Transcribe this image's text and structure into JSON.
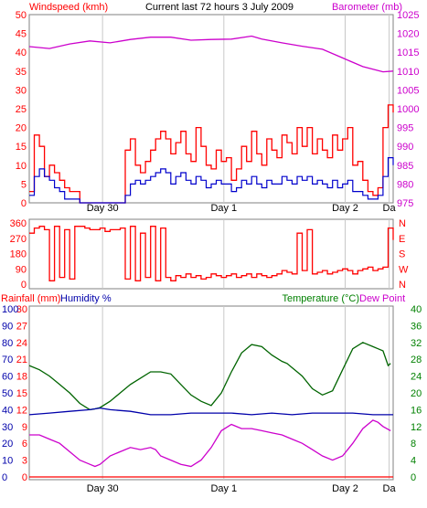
{
  "header": {
    "left_label": "Windspeed (kmh)",
    "center_title": "Current last 72 hours 3 July 2009",
    "right_label": "Barometer (mb)"
  },
  "colors": {
    "background": "#ffffff",
    "plot_border": "#808080",
    "grid_vertical": "#c8c8c8",
    "wind": "#ff0000",
    "gust": "#ff0000",
    "wind_avg": "#0000cc",
    "green": "#008000",
    "barometer": "#cc00cc",
    "direction": "#ff0000",
    "humidity": "#0000aa",
    "temperature": "#006400",
    "dewpoint": "#cc00cc",
    "rainfall": "#ff0000",
    "tick_red": "#ff0000",
    "tick_magenta": "#cc00cc",
    "tick_blue": "#0000aa",
    "tick_green": "#008000"
  },
  "chart_data": [
    {
      "type": "line",
      "name": "wind-and-barometer",
      "x_range": [
        0,
        72
      ],
      "x_ticks": [
        {
          "x": 14.5,
          "label": "Day 30"
        },
        {
          "x": 38.5,
          "label": "Day 1"
        },
        {
          "x": 62.5,
          "label": "Day 2"
        },
        {
          "x": 71.2,
          "label": "Da"
        }
      ],
      "left_axis": {
        "label": "Windspeed (kmh)",
        "ylim": [
          0,
          50
        ],
        "ticks": [
          0,
          5,
          10,
          15,
          20,
          25,
          30,
          35,
          40,
          45,
          50
        ]
      },
      "right_axis": {
        "label": "Barometer (mb)",
        "ylim": [
          975,
          1025
        ],
        "ticks": [
          975,
          980,
          985,
          990,
          995,
          1000,
          1005,
          1010,
          1015,
          1020,
          1025
        ]
      },
      "series": [
        {
          "key": "barometer",
          "axis": "right",
          "x": [
            0,
            4,
            8,
            12,
            16,
            20,
            24,
            28,
            32,
            36,
            40,
            44,
            46,
            50,
            54,
            58,
            62,
            66,
            70,
            72
          ],
          "y": [
            1016.5,
            1016,
            1017.2,
            1018,
            1017.5,
            1018.4,
            1019,
            1019,
            1018.2,
            1018.4,
            1018.5,
            1019.3,
            1018.5,
            1017.5,
            1016.6,
            1015.8,
            1013.5,
            1011.2,
            1009.8,
            1010
          ]
        },
        {
          "key": "gust",
          "axis": "left",
          "x": [
            0,
            1,
            2,
            3,
            4,
            5,
            6,
            7,
            8,
            9,
            10,
            11,
            12,
            13,
            14,
            15,
            16,
            17,
            18,
            19,
            20,
            21,
            22,
            23,
            24,
            25,
            26,
            27,
            28,
            29,
            30,
            31,
            32,
            33,
            34,
            35,
            36,
            37,
            38,
            39,
            40,
            41,
            42,
            43,
            44,
            45,
            46,
            47,
            48,
            49,
            50,
            51,
            52,
            53,
            54,
            55,
            56,
            57,
            58,
            59,
            60,
            61,
            62,
            63,
            64,
            65,
            66,
            67,
            68,
            69,
            70,
            71,
            72
          ],
          "y": [
            3,
            18,
            15,
            7,
            10,
            8,
            6,
            4,
            3,
            3,
            0,
            0,
            0,
            0,
            0,
            0,
            0,
            0,
            0,
            14,
            17,
            10,
            8,
            11,
            14,
            17,
            19,
            17,
            13,
            16,
            19,
            13,
            11,
            20,
            15,
            10,
            9,
            14,
            11,
            12,
            6,
            9,
            15,
            11,
            19,
            13,
            10,
            17,
            14,
            12,
            18,
            16,
            13,
            20,
            15,
            20,
            13,
            17,
            14,
            12,
            18,
            14,
            17,
            20,
            10,
            11,
            6,
            3,
            2,
            4,
            20,
            26,
            24
          ]
        },
        {
          "key": "wind_avg",
          "axis": "left",
          "x": [
            0,
            1,
            2,
            3,
            4,
            5,
            6,
            7,
            8,
            9,
            10,
            11,
            12,
            13,
            14,
            15,
            16,
            17,
            18,
            19,
            20,
            21,
            22,
            23,
            24,
            25,
            26,
            27,
            28,
            29,
            30,
            31,
            32,
            33,
            34,
            35,
            36,
            37,
            38,
            39,
            40,
            41,
            42,
            43,
            44,
            45,
            46,
            47,
            48,
            49,
            50,
            51,
            52,
            53,
            54,
            55,
            56,
            57,
            58,
            59,
            60,
            61,
            62,
            63,
            64,
            65,
            66,
            67,
            68,
            69,
            70,
            71,
            72
          ],
          "y": [
            2,
            7,
            9,
            7,
            6,
            4,
            3,
            1,
            1,
            1,
            0,
            0,
            0,
            0,
            0,
            0,
            0,
            0,
            0,
            2,
            5,
            6,
            5,
            6,
            7,
            8,
            9,
            8,
            5,
            7,
            8,
            6,
            5,
            7,
            6,
            4,
            5,
            6,
            5,
            5,
            3,
            4,
            6,
            5,
            7,
            5,
            4,
            6,
            5,
            5,
            7,
            6,
            5,
            7,
            6,
            7,
            5,
            6,
            5,
            4,
            6,
            4,
            5,
            6,
            3,
            3,
            2,
            1,
            1,
            2,
            7,
            12,
            10
          ]
        }
      ]
    },
    {
      "type": "line",
      "name": "wind-direction",
      "x_range": [
        0,
        72
      ],
      "left_axis": {
        "ylim": [
          0,
          360
        ],
        "ticks": [
          0,
          90,
          180,
          270,
          360
        ]
      },
      "right_axis": {
        "ticks": [
          "N",
          "W",
          "S",
          "E",
          "N"
        ]
      },
      "series": [
        {
          "key": "direction",
          "axis": "left",
          "x": [
            0,
            1,
            2,
            3,
            4,
            5,
            6,
            7,
            8,
            9,
            10,
            11,
            12,
            13,
            14,
            15,
            16,
            17,
            18,
            19,
            20,
            21,
            22,
            23,
            24,
            25,
            26,
            27,
            28,
            29,
            30,
            31,
            32,
            33,
            34,
            35,
            36,
            37,
            38,
            39,
            40,
            41,
            42,
            43,
            44,
            45,
            46,
            47,
            48,
            49,
            50,
            51,
            52,
            53,
            54,
            55,
            56,
            57,
            58,
            59,
            60,
            61,
            62,
            63,
            64,
            65,
            66,
            67,
            68,
            69,
            70,
            71,
            72
          ],
          "y": [
            300,
            330,
            340,
            320,
            20,
            340,
            40,
            320,
            30,
            340,
            340,
            330,
            320,
            320,
            330,
            310,
            320,
            320,
            330,
            30,
            340,
            20,
            300,
            40,
            340,
            20,
            330,
            40,
            20,
            50,
            40,
            60,
            40,
            50,
            30,
            40,
            60,
            50,
            40,
            50,
            60,
            40,
            50,
            60,
            40,
            60,
            50,
            40,
            50,
            60,
            80,
            70,
            60,
            300,
            80,
            320,
            60,
            70,
            80,
            60,
            70,
            80,
            90,
            80,
            60,
            80,
            90,
            100,
            80,
            90,
            100,
            330,
            260
          ]
        }
      ]
    },
    {
      "type": "line",
      "name": "temperature-humidity-rain",
      "x_range": [
        0,
        72
      ],
      "axes": {
        "rainfall": {
          "label": "Rainfall (mm)",
          "ylim": [
            0,
            30
          ],
          "ticks": [
            0,
            3,
            6,
            9,
            12,
            15,
            18,
            21,
            24,
            27,
            30
          ]
        },
        "humidity": {
          "label": "Humidity %",
          "ylim": [
            0,
            100
          ],
          "ticks": [
            0,
            10,
            20,
            30,
            40,
            50,
            60,
            70,
            80,
            90,
            100
          ]
        },
        "temperature": {
          "label": "Temperature (°C)",
          "ylim": [
            0,
            40
          ],
          "ticks": [
            0,
            4,
            8,
            12,
            16,
            20,
            24,
            28,
            32,
            36,
            40
          ]
        },
        "dewpoint": {
          "label": "Dew Point"
        }
      },
      "series": [
        {
          "key": "temperature",
          "axis": "temperature",
          "x": [
            0,
            2,
            4,
            6,
            8,
            10,
            12,
            13,
            14,
            16,
            18,
            20,
            22,
            24,
            26,
            28,
            30,
            32,
            34,
            36,
            38,
            40,
            42,
            44,
            46,
            48,
            50,
            51,
            52,
            53,
            54,
            56,
            58,
            60,
            62,
            64,
            66,
            68,
            69,
            70,
            71,
            71.5
          ],
          "y": [
            26.5,
            25.5,
            24,
            22,
            20,
            17.5,
            16,
            16.2,
            16.5,
            18,
            20,
            22,
            23.5,
            25,
            25,
            24.5,
            22,
            19.5,
            18,
            17,
            20,
            25,
            29.5,
            31.5,
            31,
            29,
            27.5,
            27,
            26,
            25,
            24,
            21,
            19.5,
            20.5,
            25.5,
            30.5,
            32,
            31,
            30.5,
            30,
            26.5,
            27
          ]
        },
        {
          "key": "humidity",
          "axis": "humidity",
          "x": [
            0,
            4,
            8,
            12,
            14,
            16,
            20,
            24,
            28,
            32,
            36,
            40,
            44,
            48,
            52,
            56,
            60,
            64,
            68,
            70,
            72
          ],
          "y": [
            37,
            38,
            39,
            40,
            41,
            40,
            39,
            37,
            37,
            38,
            38,
            38,
            37,
            38,
            37,
            38,
            38,
            38,
            37,
            37,
            37
          ]
        },
        {
          "key": "dewpoint",
          "axis": "temperature",
          "x": [
            0,
            2,
            4,
            6,
            8,
            10,
            12,
            13,
            14,
            16,
            18,
            20,
            22,
            24,
            25,
            26,
            28,
            30,
            32,
            34,
            36,
            38,
            40,
            42,
            44,
            46,
            48,
            50,
            52,
            54,
            56,
            58,
            60,
            62,
            64,
            66,
            68,
            69,
            70,
            71.5
          ],
          "y": [
            10,
            10,
            9,
            8,
            6,
            4,
            3,
            2.5,
            3,
            5,
            6,
            7,
            6.5,
            7,
            6.5,
            5,
            4,
            3,
            2.5,
            4,
            7,
            11,
            12.5,
            11.5,
            11.5,
            11,
            10.5,
            10,
            9,
            8,
            6.5,
            5,
            4,
            5,
            8,
            11.5,
            13.5,
            13,
            12,
            11
          ]
        },
        {
          "key": "rainfall",
          "axis": "rainfall",
          "x": [
            0,
            72
          ],
          "y": [
            0,
            0
          ]
        }
      ]
    }
  ],
  "bottom_panel_labels": {
    "rainfall": "Rainfall (mm)",
    "humidity": "Humidity %",
    "temperature": "Temperature (°C)",
    "dewpoint": "Dew Point"
  }
}
